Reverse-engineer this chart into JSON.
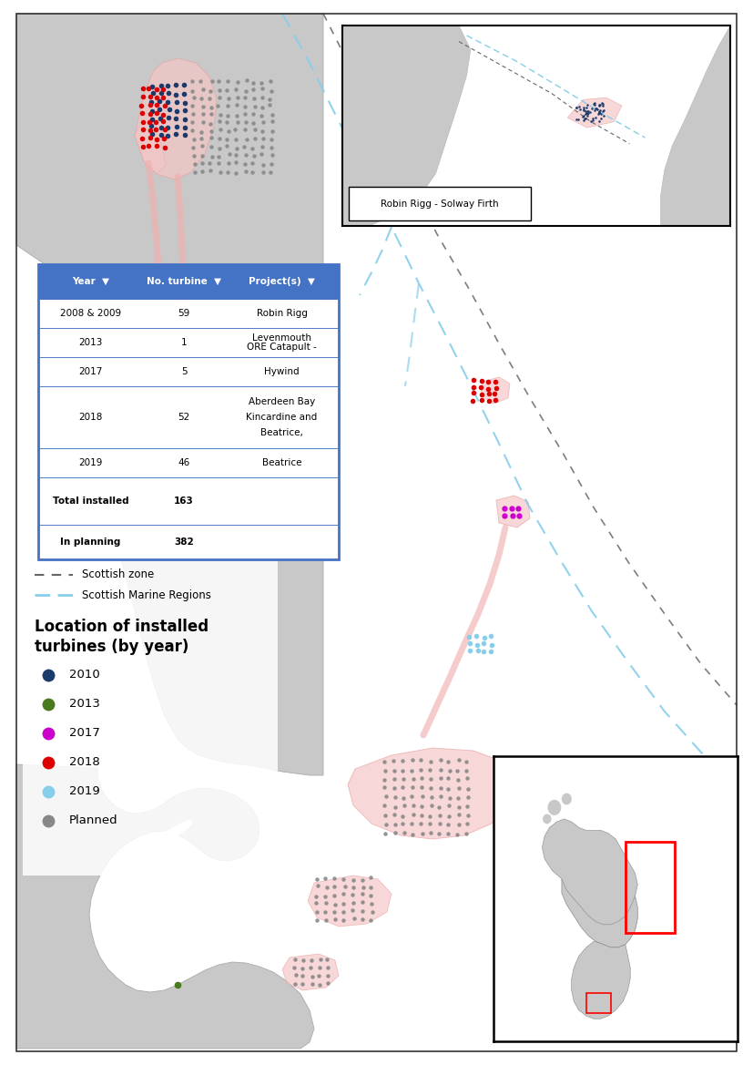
{
  "figure_bg": "#ffffff",
  "land_color": "#c8c8c8",
  "sea_color": "#ffffff",
  "lease_color": "#f5c6c6",
  "table_header_bg": "#4472c4",
  "table_header_fg": "#ffffff",
  "table_border": "#4472c4",
  "inset_label": "Robin Rigg - Solway Firth",
  "table_rows": [
    [
      "2008 & 2009",
      "59",
      "Robin Rigg"
    ],
    [
      "2013",
      "1",
      "ORE Catapult -\nLevenmouth"
    ],
    [
      "2017",
      "5",
      "Hywind"
    ],
    [
      "2018",
      "52",
      "Beatrice,\nKincardine and\nAberdeen Bay"
    ],
    [
      "2019",
      "46",
      "Beatrice"
    ],
    [
      "Total installed",
      "163",
      ""
    ],
    [
      "In planning",
      "382",
      ""
    ]
  ],
  "legend_items": [
    {
      "year": "2010",
      "color": "#1a3a6b"
    },
    {
      "year": "2013",
      "color": "#4a7a1e"
    },
    {
      "year": "2017",
      "color": "#cc00cc"
    },
    {
      "year": "2018",
      "color": "#dd0000"
    },
    {
      "year": "2019",
      "color": "#87ceeb"
    },
    {
      "year": "Planned",
      "color": "#888888"
    }
  ]
}
